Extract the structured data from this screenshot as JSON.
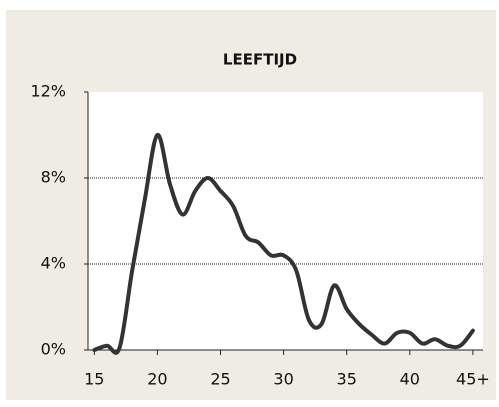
{
  "chart_data": {
    "type": "line",
    "title": "LEEFTIJD",
    "x": [
      15,
      16,
      17,
      18,
      19,
      20,
      21,
      22,
      23,
      24,
      25,
      26,
      27,
      28,
      29,
      30,
      31,
      32,
      33,
      34,
      35,
      36,
      37,
      38,
      39,
      40,
      41,
      42,
      43,
      44,
      45
    ],
    "series": [
      {
        "name": "Leeftijd",
        "color": "#333333",
        "values": [
          0,
          0.2,
          0.1,
          3.7,
          7.0,
          10.0,
          7.7,
          6.3,
          7.4,
          8.0,
          7.4,
          6.7,
          5.3,
          5.0,
          4.4,
          4.4,
          3.7,
          1.4,
          1.2,
          3.0,
          1.9,
          1.2,
          0.7,
          0.3,
          0.8,
          0.8,
          0.3,
          0.5,
          0.2,
          0.2,
          0.9
        ]
      }
    ],
    "xlim": [
      14.5,
      45.8
    ],
    "xticks": [
      15,
      20,
      25,
      30,
      35,
      40,
      {
        "value": 45,
        "label": "45+"
      }
    ],
    "ylim": [
      0,
      12
    ],
    "yticks": [
      {
        "value": 0,
        "label": "0%"
      },
      {
        "value": 4,
        "label": "4%"
      },
      {
        "value": 8,
        "label": "8%"
      },
      {
        "value": 12,
        "label": "12%"
      }
    ],
    "grid": true
  }
}
